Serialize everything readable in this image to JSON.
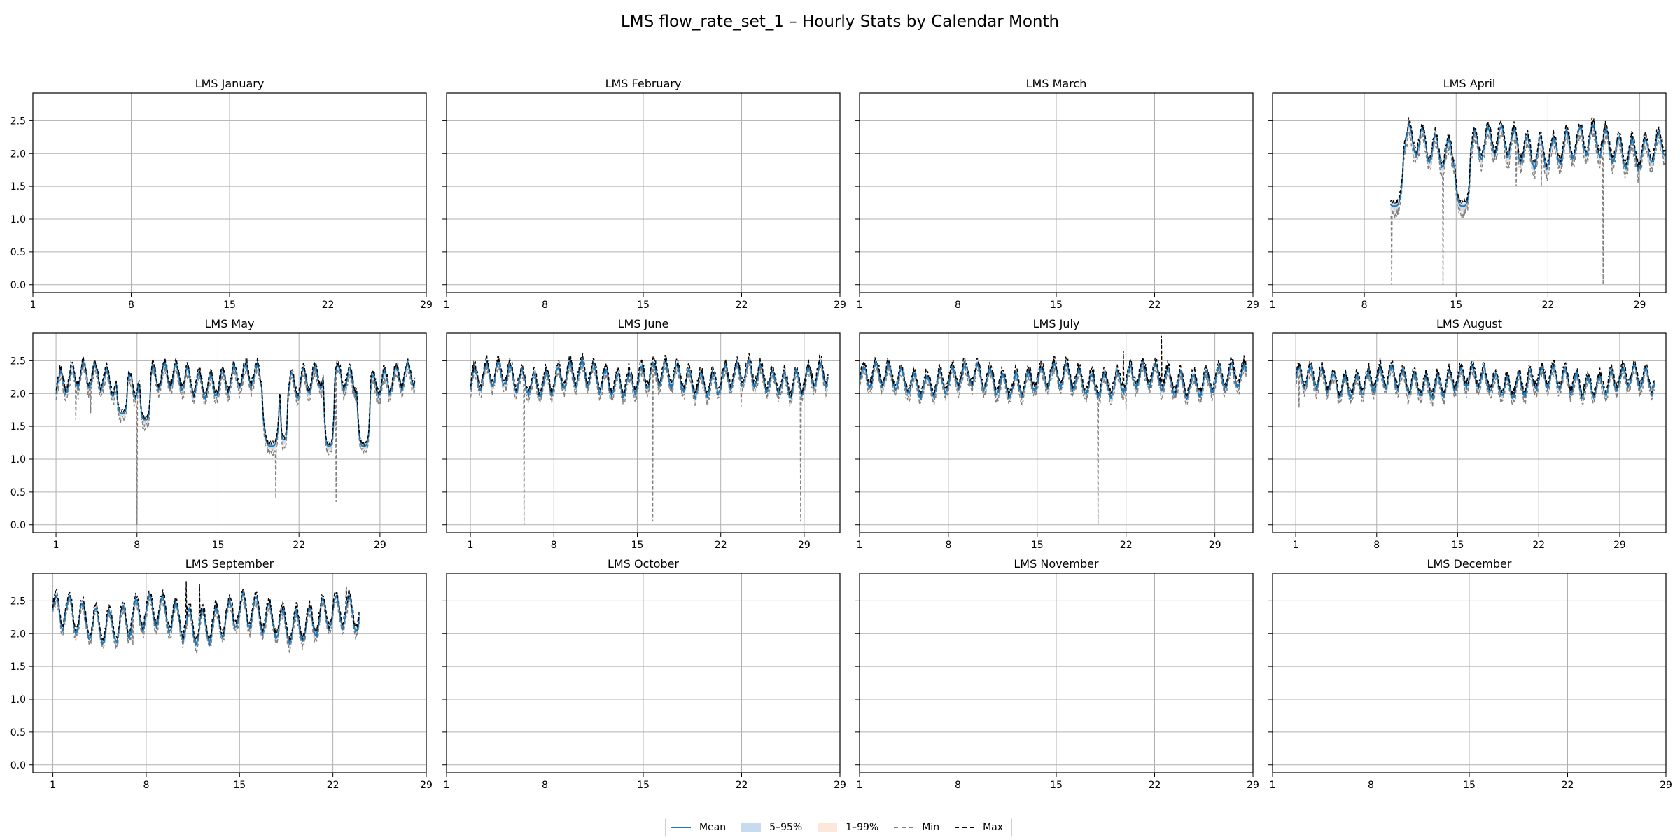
{
  "figure": {
    "title": "LMS flow_rate_set_1 – Hourly Stats by Calendar Month"
  },
  "legend": {
    "items": [
      {
        "label": "Mean",
        "kind": "line",
        "color": "#1f77b4",
        "dash": false
      },
      {
        "label": "5–95%",
        "kind": "band",
        "color": "#c6dbef"
      },
      {
        "label": "1–99%",
        "kind": "band",
        "color": "#fde7da"
      },
      {
        "label": "Min",
        "kind": "line",
        "color": "#808080",
        "dash": true
      },
      {
        "label": "Max",
        "kind": "line",
        "color": "#000000",
        "dash": true
      }
    ]
  },
  "chart_data": [
    {
      "type": "line",
      "title": "LMS January",
      "month_days": 31,
      "xlim": [
        1,
        29
      ],
      "xticks": [
        1,
        8,
        15,
        22,
        29
      ],
      "ylim": [
        -0.12,
        2.92
      ],
      "yticks": [
        0.0,
        0.5,
        1.0,
        1.5,
        2.0,
        2.5
      ],
      "grid": true,
      "has_data": false
    },
    {
      "type": "line",
      "title": "LMS February",
      "month_days": 28,
      "xlim": [
        1,
        29
      ],
      "xticks": [
        1,
        8,
        15,
        22,
        29
      ],
      "ylim": [
        -0.12,
        2.92
      ],
      "yticks": [
        0.0,
        0.5,
        1.0,
        1.5,
        2.0,
        2.5
      ],
      "grid": true,
      "has_data": false
    },
    {
      "type": "line",
      "title": "LMS March",
      "month_days": 31,
      "xlim": [
        1,
        29
      ],
      "xticks": [
        1,
        8,
        15,
        22,
        29
      ],
      "ylim": [
        -0.12,
        2.92
      ],
      "yticks": [
        0.0,
        0.5,
        1.0,
        1.5,
        2.0,
        2.5
      ],
      "grid": true,
      "has_data": false
    },
    {
      "type": "line",
      "title": "LMS April",
      "month_days": 30,
      "xlim": [
        1,
        31
      ],
      "xticks": [
        1,
        8,
        15,
        22,
        29
      ],
      "ylim": [
        -0.12,
        2.92
      ],
      "yticks": [
        0.0,
        0.5,
        1.0,
        1.5,
        2.0,
        2.5
      ],
      "grid": true,
      "has_data": true,
      "data_range": [
        10.0,
        31.0
      ],
      "level": 2.1,
      "amplitude": 0.22,
      "noise": 0.05,
      "dips": [
        [
          10.3,
          1.2,
          1.4
        ],
        [
          15.5,
          1.2,
          1.2
        ]
      ],
      "min_spikes": [
        [
          10.1,
          0.0
        ],
        [
          14.0,
          0.0
        ],
        [
          26.2,
          0.0
        ],
        [
          9.9,
          0.4
        ],
        [
          19.6,
          1.5
        ],
        [
          21.5,
          1.5
        ]
      ],
      "min_extra": 0.15,
      "max_extra": 0.08
    },
    {
      "type": "line",
      "title": "LMS May",
      "month_days": 31,
      "xlim": [
        -1,
        33
      ],
      "xticks": [
        1,
        8,
        15,
        22,
        29
      ],
      "ylim": [
        -0.12,
        2.92
      ],
      "yticks": [
        0.0,
        0.5,
        1.0,
        1.5,
        2.0,
        2.5
      ],
      "grid": true,
      "has_data": true,
      "data_range": [
        1.0,
        32.0
      ],
      "level": 2.2,
      "amplitude": 0.18,
      "noise": 0.05,
      "dips": [
        [
          6.7,
          1.7,
          1.0
        ],
        [
          8.7,
          1.6,
          1.0
        ],
        [
          19.6,
          1.2,
          1.6
        ],
        [
          24.6,
          1.2,
          1.0
        ],
        [
          27.6,
          1.2,
          1.2
        ],
        [
          20.7,
          1.3,
          0.7
        ]
      ],
      "min_spikes": [
        [
          8.0,
          0.0
        ],
        [
          20.0,
          0.4
        ],
        [
          25.2,
          0.35
        ],
        [
          2.7,
          1.6
        ],
        [
          4.0,
          1.7
        ]
      ],
      "min_extra": 0.12,
      "max_extra": 0.06
    },
    {
      "type": "line",
      "title": "LMS June",
      "month_days": 30,
      "xlim": [
        -1,
        32
      ],
      "xticks": [
        1,
        8,
        15,
        22,
        29
      ],
      "ylim": [
        -0.12,
        2.92
      ],
      "yticks": [
        0.0,
        0.5,
        1.0,
        1.5,
        2.0,
        2.5
      ],
      "grid": true,
      "has_data": true,
      "data_range": [
        1.0,
        31.0
      ],
      "level": 2.22,
      "amplitude": 0.18,
      "noise": 0.05,
      "dips": [],
      "min_spikes": [
        [
          5.5,
          0.0
        ],
        [
          16.3,
          0.05
        ],
        [
          28.7,
          0.05
        ],
        [
          23.7,
          1.8
        ]
      ],
      "min_extra": 0.1,
      "max_extra": 0.08
    },
    {
      "type": "line",
      "title": "LMS July",
      "month_days": 31,
      "xlim": [
        1,
        32
      ],
      "xticks": [
        1,
        8,
        15,
        22,
        29
      ],
      "ylim": [
        -0.12,
        2.92
      ],
      "yticks": [
        0.0,
        0.5,
        1.0,
        1.5,
        2.0,
        2.5
      ],
      "grid": true,
      "has_data": true,
      "data_range": [
        1.0,
        31.5
      ],
      "level": 2.2,
      "amplitude": 0.17,
      "noise": 0.05,
      "dips": [],
      "min_spikes": [
        [
          19.8,
          0.0
        ],
        [
          22.0,
          1.75
        ]
      ],
      "max_spikes": [
        [
          24.8,
          2.88
        ],
        [
          21.8,
          2.65
        ]
      ],
      "min_extra": 0.1,
      "max_extra": 0.08
    },
    {
      "type": "line",
      "title": "LMS August",
      "month_days": 31,
      "xlim": [
        -1,
        33
      ],
      "xticks": [
        1,
        8,
        15,
        22,
        29
      ],
      "ylim": [
        -0.12,
        2.92
      ],
      "yticks": [
        0.0,
        0.5,
        1.0,
        1.5,
        2.0,
        2.5
      ],
      "grid": true,
      "has_data": true,
      "data_range": [
        1.0,
        32.0
      ],
      "level": 2.18,
      "amplitude": 0.16,
      "noise": 0.05,
      "dips": [],
      "min_spikes": [
        [
          1.3,
          1.78
        ],
        [
          10.7,
          1.82
        ]
      ],
      "min_extra": 0.1,
      "max_extra": 0.07
    },
    {
      "type": "line",
      "title": "LMS September",
      "month_days": 30,
      "xlim": [
        -0.5,
        29
      ],
      "xticks": [
        1,
        8,
        15,
        22,
        29
      ],
      "ylim": [
        -0.12,
        2.92
      ],
      "yticks": [
        0.0,
        0.5,
        1.0,
        1.5,
        2.0,
        2.5
      ],
      "grid": true,
      "has_data": true,
      "data_range": [
        1.0,
        24.0
      ],
      "level": 2.22,
      "amplitude": 0.25,
      "noise": 0.05,
      "dips": [],
      "min_spikes": [
        [
          7.0,
          1.82
        ]
      ],
      "max_spikes": [
        [
          11.0,
          2.8
        ],
        [
          12.0,
          2.75
        ],
        [
          23.0,
          2.72
        ]
      ],
      "min_extra": 0.1,
      "max_extra": 0.08
    },
    {
      "type": "line",
      "title": "LMS October",
      "month_days": 31,
      "xlim": [
        1,
        29
      ],
      "xticks": [
        1,
        8,
        15,
        22,
        29
      ],
      "ylim": [
        -0.12,
        2.92
      ],
      "yticks": [
        0.0,
        0.5,
        1.0,
        1.5,
        2.0,
        2.5
      ],
      "grid": true,
      "has_data": false
    },
    {
      "type": "line",
      "title": "LMS November",
      "month_days": 30,
      "xlim": [
        1,
        29
      ],
      "xticks": [
        1,
        8,
        15,
        22,
        29
      ],
      "ylim": [
        -0.12,
        2.92
      ],
      "yticks": [
        0.0,
        0.5,
        1.0,
        1.5,
        2.0,
        2.5
      ],
      "grid": true,
      "has_data": false
    },
    {
      "type": "line",
      "title": "LMS December",
      "month_days": 31,
      "xlim": [
        1,
        29
      ],
      "xticks": [
        1,
        8,
        15,
        22,
        29
      ],
      "ylim": [
        -0.12,
        2.92
      ],
      "yticks": [
        0.0,
        0.5,
        1.0,
        1.5,
        2.0,
        2.5
      ],
      "grid": true,
      "has_data": false
    }
  ]
}
